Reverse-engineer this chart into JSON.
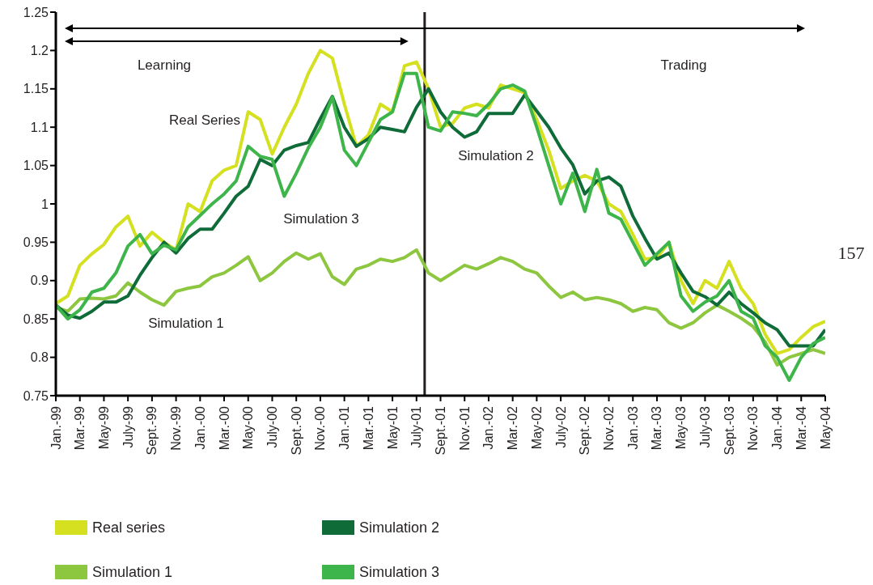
{
  "chart_data": {
    "type": "line",
    "x": [
      "1999-01",
      "1999-02",
      "1999-03",
      "1999-04",
      "1999-05",
      "1999-06",
      "1999-07",
      "1999-08",
      "1999-09",
      "1999-10",
      "1999-11",
      "1999-12",
      "2000-01",
      "2000-02",
      "2000-03",
      "2000-04",
      "2000-05",
      "2000-06",
      "2000-07",
      "2000-08",
      "2000-09",
      "2000-10",
      "2000-11",
      "2000-12",
      "2001-01",
      "2001-02",
      "2001-03",
      "2001-04",
      "2001-05",
      "2001-06",
      "2001-07",
      "2001-08",
      "2001-09",
      "2001-10",
      "2001-11",
      "2001-12",
      "2002-01",
      "2002-02",
      "2002-03",
      "2002-04",
      "2002-05",
      "2002-06",
      "2002-07",
      "2002-08",
      "2002-09",
      "2002-10",
      "2002-11",
      "2002-12",
      "2003-01",
      "2003-02",
      "2003-03",
      "2003-04",
      "2003-05",
      "2003-06",
      "2003-07",
      "2003-08",
      "2003-09",
      "2003-10",
      "2003-11",
      "2003-12",
      "2004-01",
      "2004-02",
      "2004-03",
      "2004-04",
      "2004-05"
    ],
    "series": [
      {
        "name": "Real series",
        "color": "#d4e020",
        "values": [
          0.87,
          0.88,
          0.92,
          0.935,
          0.947,
          0.97,
          0.984,
          0.945,
          0.963,
          0.95,
          0.94,
          1.0,
          0.99,
          1.03,
          1.044,
          1.05,
          1.12,
          1.11,
          1.065,
          1.1,
          1.13,
          1.17,
          1.2,
          1.19,
          1.13,
          1.075,
          1.09,
          1.13,
          1.12,
          1.18,
          1.185,
          1.15,
          1.1,
          1.105,
          1.125,
          1.13,
          1.125,
          1.155,
          1.15,
          1.145,
          1.11,
          1.07,
          1.02,
          1.03,
          1.037,
          1.03,
          1.0,
          0.99,
          0.96,
          0.928,
          0.93,
          0.95,
          0.9,
          0.87,
          0.9,
          0.89,
          0.925,
          0.89,
          0.87,
          0.83,
          0.805,
          0.81,
          0.826,
          0.84,
          0.847
        ]
      },
      {
        "name": "Simulation 1",
        "color": "#8dc63f",
        "values": [
          0.865,
          0.86,
          0.876,
          0.877,
          0.876,
          0.88,
          0.897,
          0.885,
          0.875,
          0.868,
          0.886,
          0.89,
          0.893,
          0.905,
          0.91,
          0.92,
          0.931,
          0.9,
          0.91,
          0.925,
          0.936,
          0.928,
          0.935,
          0.905,
          0.895,
          0.915,
          0.92,
          0.928,
          0.925,
          0.93,
          0.94,
          0.91,
          0.9,
          0.91,
          0.92,
          0.915,
          0.922,
          0.93,
          0.925,
          0.915,
          0.91,
          0.893,
          0.878,
          0.885,
          0.875,
          0.878,
          0.875,
          0.87,
          0.86,
          0.865,
          0.862,
          0.845,
          0.838,
          0.845,
          0.858,
          0.868,
          0.86,
          0.851,
          0.84,
          0.82,
          0.79,
          0.8,
          0.805,
          0.81,
          0.805
        ]
      },
      {
        "name": "Simulation 2",
        "color": "#0f6b38",
        "values": [
          0.868,
          0.855,
          0.851,
          0.86,
          0.872,
          0.872,
          0.88,
          0.907,
          0.93,
          0.95,
          0.936,
          0.955,
          0.967,
          0.967,
          0.988,
          1.01,
          1.023,
          1.058,
          1.05,
          1.07,
          1.076,
          1.08,
          1.111,
          1.14,
          1.1,
          1.075,
          1.085,
          1.1,
          1.097,
          1.094,
          1.126,
          1.15,
          1.12,
          1.1,
          1.087,
          1.094,
          1.118,
          1.118,
          1.118,
          1.142,
          1.121,
          1.1,
          1.073,
          1.051,
          1.013,
          1.03,
          1.035,
          1.023,
          0.984,
          0.955,
          0.928,
          0.936,
          0.91,
          0.886,
          0.879,
          0.868,
          0.885,
          0.87,
          0.858,
          0.845,
          0.836,
          0.815,
          0.815,
          0.815,
          0.836
        ]
      },
      {
        "name": "Simulation 3",
        "color": "#3db54a",
        "values": [
          0.868,
          0.85,
          0.862,
          0.885,
          0.89,
          0.91,
          0.945,
          0.96,
          0.935,
          0.946,
          0.94,
          0.97,
          0.985,
          1.0,
          1.013,
          1.03,
          1.075,
          1.062,
          1.058,
          1.01,
          1.04,
          1.073,
          1.1,
          1.139,
          1.07,
          1.05,
          1.08,
          1.11,
          1.12,
          1.17,
          1.17,
          1.1,
          1.095,
          1.12,
          1.118,
          1.115,
          1.13,
          1.15,
          1.155,
          1.147,
          1.1,
          1.05,
          1.0,
          1.04,
          0.99,
          1.045,
          0.988,
          0.98,
          0.95,
          0.92,
          0.935,
          0.95,
          0.88,
          0.86,
          0.872,
          0.88,
          0.9,
          0.86,
          0.851,
          0.815,
          0.8,
          0.77,
          0.8,
          0.818,
          0.826
        ]
      }
    ],
    "xlim": [
      "1999-01",
      "2004-05"
    ],
    "xticks": [
      {
        "value": "1999-01",
        "label": "Jan.-99"
      },
      {
        "value": "1999-03",
        "label": "Mar.-99"
      },
      {
        "value": "1999-05",
        "label": "May-99"
      },
      {
        "value": "1999-07",
        "label": "July-99"
      },
      {
        "value": "1999-09",
        "label": "Sept.-99"
      },
      {
        "value": "1999-11",
        "label": "Nov.-99"
      },
      {
        "value": "2000-01",
        "label": "Jan.-00"
      },
      {
        "value": "2000-03",
        "label": "Mar.-00"
      },
      {
        "value": "2000-05",
        "label": "May-00"
      },
      {
        "value": "2000-07",
        "label": "July-00"
      },
      {
        "value": "2000-09",
        "label": "Sept.-00"
      },
      {
        "value": "2000-11",
        "label": "Nov.-00"
      },
      {
        "value": "2001-01",
        "label": "Jan.-01"
      },
      {
        "value": "2001-03",
        "label": "Mar.-01"
      },
      {
        "value": "2001-05",
        "label": "May-01"
      },
      {
        "value": "2001-07",
        "label": "July-01"
      },
      {
        "value": "2001-09",
        "label": "Sept.-01"
      },
      {
        "value": "2001-11",
        "label": "Nov.-01"
      },
      {
        "value": "2002-01",
        "label": "Jan.-02"
      },
      {
        "value": "2002-03",
        "label": "Mar.-02"
      },
      {
        "value": "2002-05",
        "label": "May-02"
      },
      {
        "value": "2002-07",
        "label": "July-02"
      },
      {
        "value": "2002-09",
        "label": "Sept.-02"
      },
      {
        "value": "2002-11",
        "label": "Nov.-02"
      },
      {
        "value": "2003-01",
        "label": "Jan.-03"
      },
      {
        "value": "2003-03",
        "label": "Mar.-03"
      },
      {
        "value": "2003-05",
        "label": "May-03"
      },
      {
        "value": "2003-07",
        "label": "July-03"
      },
      {
        "value": "2003-09",
        "label": "Sept.-03"
      },
      {
        "value": "2003-11",
        "label": "Nov.-03"
      },
      {
        "value": "2004-01",
        "label": "Jan.-04"
      },
      {
        "value": "2004-03",
        "label": "Mar.-04"
      },
      {
        "value": "2004-05",
        "label": "May-04"
      }
    ],
    "ylim": [
      0.75,
      1.25
    ],
    "yticks": [
      0.75,
      0.8,
      0.85,
      0.9,
      0.95,
      1,
      1.05,
      1.1,
      1.15,
      1.2,
      1.25
    ],
    "ref_lines": [
      {
        "axis": "x",
        "value": "2001-07-22",
        "color": "#231f20"
      }
    ],
    "annotations": [
      "Learning",
      "Trading",
      "Real Series",
      "Simulation 3",
      "Simulation 1",
      "Simulation 2",
      "157"
    ],
    "legend": "bottom"
  }
}
